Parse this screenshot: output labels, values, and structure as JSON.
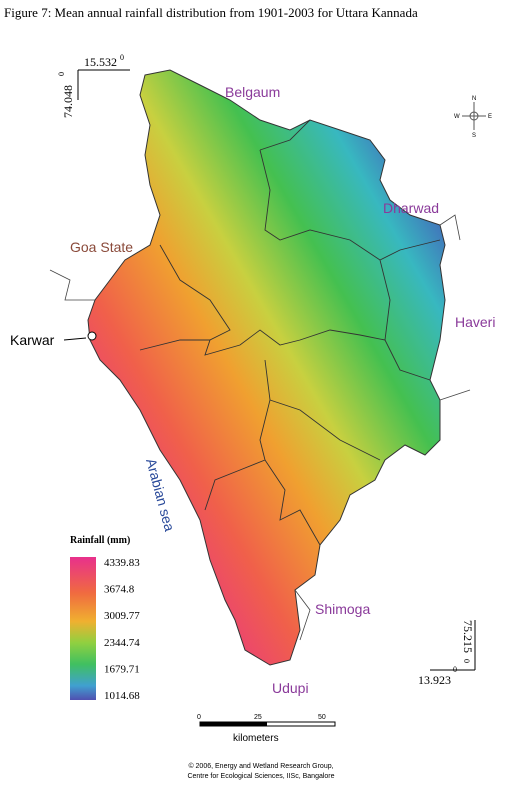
{
  "title": "Figure 7: Mean annual rainfall distribution from 1901-2003 for Uttara Kannada",
  "coords": {
    "top_lat": "15.532",
    "top_lat_deg": "0",
    "top_lon": "74.048",
    "top_lon_deg": "0",
    "bottom_lon": "75.215",
    "bottom_lon_deg": "0",
    "bottom_lat": "13.923",
    "bottom_lat_deg": "0"
  },
  "places": {
    "belgaum": "Belgaum",
    "dharwad": "Dharwad",
    "goa": "Goa State",
    "haveri": "Haveri",
    "karwar": "Karwar",
    "sea": "Arabian sea",
    "shimoga": "Shimoga",
    "udupi": "Udupi"
  },
  "compass": {
    "n": "N",
    "e": "E",
    "w": "W",
    "s": "S"
  },
  "legend": {
    "title": "Rainfall (mm)",
    "labels": [
      "4339.83",
      "3674.8",
      "3009.77",
      "2344.74",
      "1679.71",
      "1014.68"
    ]
  },
  "scale": {
    "ticks": [
      "0",
      "25",
      "50"
    ],
    "unit": "kilometers"
  },
  "credits": [
    "© 2006, Energy and Wetland Research Group,",
    "Centre for Ecological Sciences, IISc, Bangalore"
  ]
}
